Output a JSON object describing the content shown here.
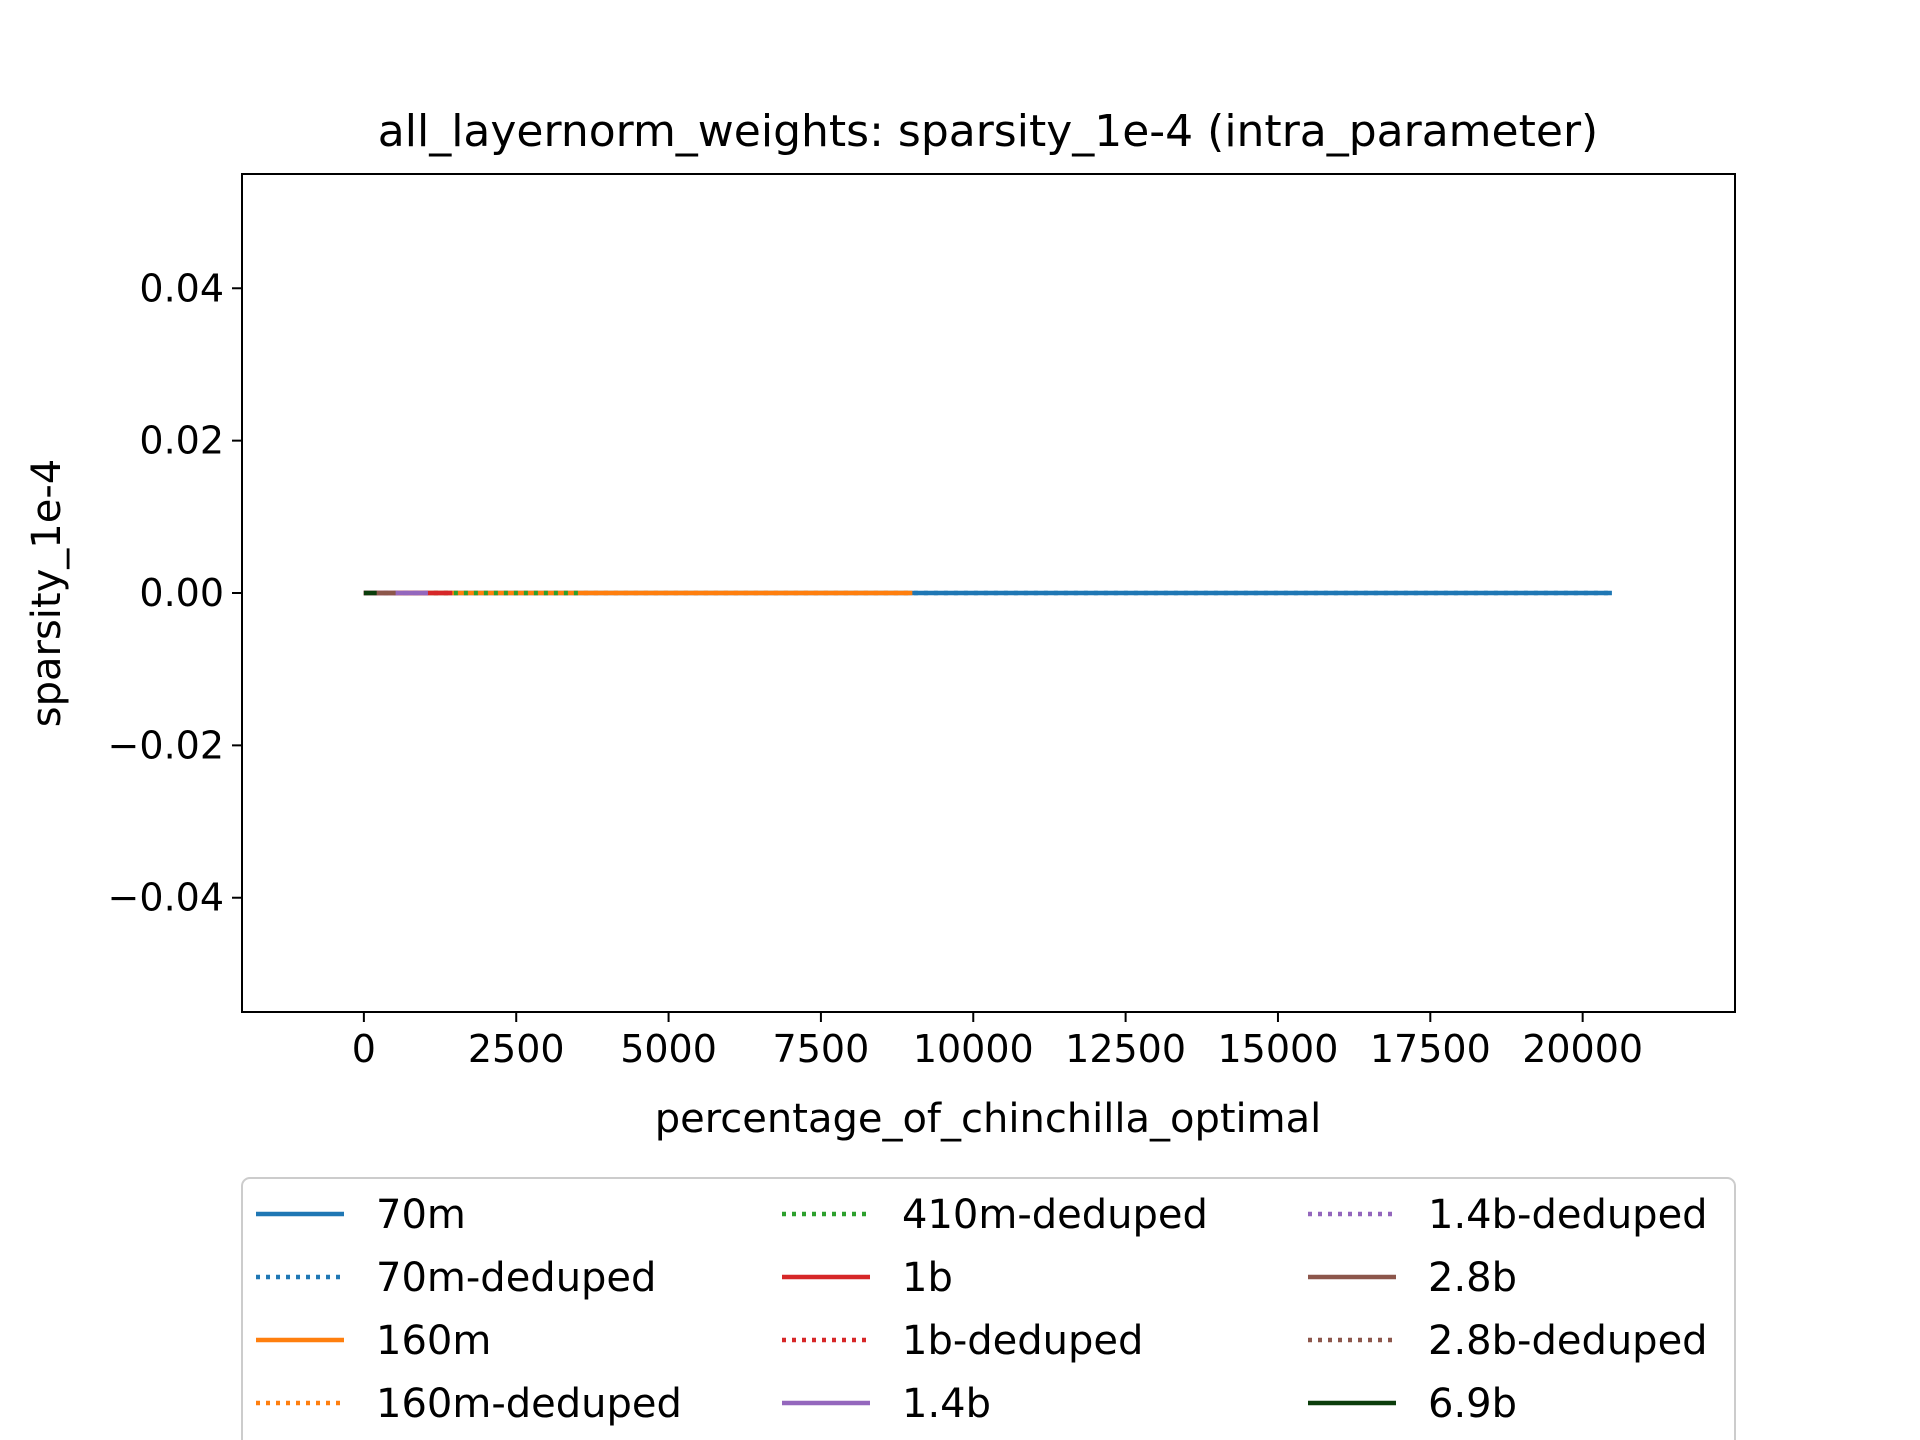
{
  "chart_data": {
    "type": "line",
    "title": "all_layernorm_weights: sparsity_1e-4 (intra_parameter)",
    "xlabel": "percentage_of_chinchilla_optimal",
    "ylabel": "sparsity_1e-4",
    "xlim": [
      -2000,
      22500
    ],
    "ylim": [
      -0.055,
      0.055
    ],
    "x_ticks": [
      0,
      2500,
      5000,
      7500,
      10000,
      12500,
      15000,
      17500,
      20000
    ],
    "x_tick_labels": [
      "0",
      "2500",
      "5000",
      "7500",
      "10000",
      "12500",
      "15000",
      "17500",
      "20000"
    ],
    "y_ticks": [
      -0.04,
      -0.02,
      0.0,
      0.02,
      0.04
    ],
    "y_tick_labels": [
      "−0.04",
      "−0.02",
      "0.00",
      "0.02",
      "0.04"
    ],
    "grid": false,
    "legend_placement": "below plot, 3 columns",
    "series": [
      {
        "name": "70m",
        "color": "#1f77b4",
        "style": "solid",
        "x": [
          0,
          20480
        ],
        "y": [
          0.0,
          0.0
        ]
      },
      {
        "name": "70m-deduped",
        "color": "#1f77b4",
        "style": "dotted",
        "x": [
          0,
          20480
        ],
        "y": [
          0.0,
          0.0
        ]
      },
      {
        "name": "160m",
        "color": "#ff7f0e",
        "style": "solid",
        "x": [
          0,
          9000
        ],
        "y": [
          0.0,
          0.0
        ]
      },
      {
        "name": "160m-deduped",
        "color": "#ff7f0e",
        "style": "dotted",
        "x": [
          0,
          9000
        ],
        "y": [
          0.0,
          0.0
        ]
      },
      {
        "name": "410m-deduped",
        "color": "#2ca02c",
        "style": "dotted",
        "x": [
          0,
          3550
        ],
        "y": [
          0.0,
          0.0
        ]
      },
      {
        "name": "1b",
        "color": "#d62728",
        "style": "solid",
        "x": [
          0,
          1450
        ],
        "y": [
          0.0,
          0.0
        ]
      },
      {
        "name": "1b-deduped",
        "color": "#d62728",
        "style": "dotted",
        "x": [
          0,
          1450
        ],
        "y": [
          0.0,
          0.0
        ]
      },
      {
        "name": "1.4b",
        "color": "#9467bd",
        "style": "solid",
        "x": [
          0,
          1050
        ],
        "y": [
          0.0,
          0.0
        ]
      },
      {
        "name": "1.4b-deduped",
        "color": "#9467bd",
        "style": "dotted",
        "x": [
          0,
          1050
        ],
        "y": [
          0.0,
          0.0
        ]
      },
      {
        "name": "2.8b",
        "color": "#8c564b",
        "style": "solid",
        "x": [
          0,
          520
        ],
        "y": [
          0.0,
          0.0
        ]
      },
      {
        "name": "2.8b-deduped",
        "color": "#8c564b",
        "style": "dotted",
        "x": [
          0,
          520
        ],
        "y": [
          0.0,
          0.0
        ]
      },
      {
        "name": "6.9b",
        "color": "#0b3d0b",
        "style": "solid",
        "x": [
          0,
          210
        ],
        "y": [
          0.0,
          0.0
        ]
      }
    ]
  }
}
